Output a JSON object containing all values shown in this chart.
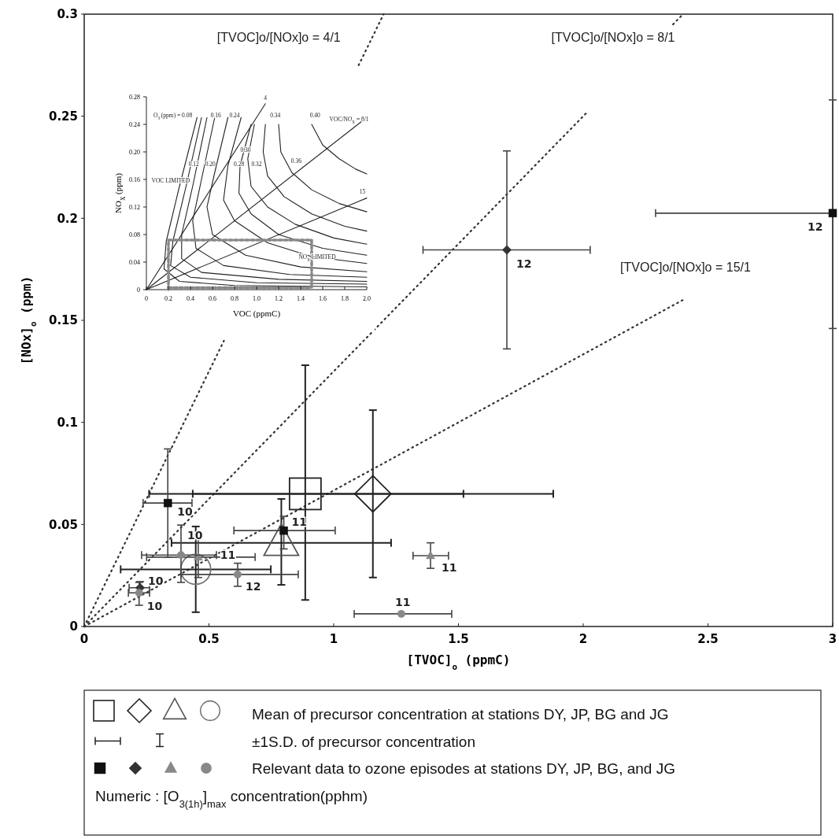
{
  "chart_data": [
    {
      "type": "scatter",
      "xlabel": "[TVOC]$_{o}$ (ppmC)",
      "ylabel": "[NOx]$_{o}$ (ppm)",
      "xlim": [
        0,
        3
      ],
      "ylim": [
        0,
        0.3
      ],
      "xticks": [
        0,
        0.5,
        1,
        1.5,
        2,
        2.5,
        3
      ],
      "yticks": [
        0,
        0.05,
        0.1,
        0.15,
        0.2,
        0.25,
        0.3
      ],
      "annotations": [
        "[TVOC]o/[NOx]o = 4/1",
        "[TVOC]o/[NOx]o = 8/1",
        "[TVOC]o/[NOx]o = 15/1",
        "Mean of precursor concentration at stations DY, JP, BG and JG",
        "±1S.D. of precursor concentration",
        "Relevant data to ozone episodes at stations DY, JP, BG, and JG",
        "Numeric : [O$_{3(1h)}$]$_{max}$ concentration(pphm)",
        {
          "text": "10",
          "x": 0.335,
          "y": 0.0605
        },
        {
          "text": "11",
          "x": 0.8,
          "y": 0.047
        },
        {
          "text": "12",
          "x": 3.0,
          "y": 0.2025
        },
        {
          "text": "12",
          "x": 1.694,
          "y": 0.1845
        },
        {
          "text": "10",
          "x": 0.224,
          "y": 0.019
        },
        {
          "text": "11",
          "x": 1.388,
          "y": 0.0347
        },
        {
          "text": "11",
          "x": 0.457,
          "y": 0.034
        },
        {
          "text": "10",
          "x": 0.388,
          "y": 0.035
        },
        {
          "text": "12",
          "x": 0.615,
          "y": 0.0255
        },
        {
          "text": "11",
          "x": 1.271,
          "y": 0.0062
        },
        {
          "text": "10",
          "x": 0.22,
          "y": 0.0165
        }
      ],
      "series": [
        {
          "type": "line",
          "line_style": "dotted",
          "color": "#333333",
          "x": [
            0,
            0.56,
            0.8,
            1.1,
            1.2
          ],
          "values": [
            0,
            0.14,
            null,
            0.275,
            0.3
          ]
        },
        {
          "type": "line",
          "line_style": "dotted",
          "color": "#333333",
          "x": [
            0,
            2.02,
            2.2,
            2.36,
            2.4
          ],
          "values": [
            0,
            0.2525,
            null,
            0.295,
            0.3
          ]
        },
        {
          "type": "line",
          "line_style": "dotted",
          "color": "#333333",
          "x": [
            0,
            2.4
          ],
          "values": [
            0,
            0.16
          ]
        },
        {
          "marker": "square",
          "color": "#222222",
          "x": [
            0.886
          ],
          "values": [
            0.065
          ],
          "errors": [
            [
              0.013,
              0.128
            ]
          ],
          "xerrors": [
            [
              0.26,
              1.52
            ]
          ]
        },
        {
          "marker": "diamond",
          "color": "#222222",
          "x": [
            1.157
          ],
          "values": [
            0.065
          ],
          "errors": [
            [
              0.024,
              0.106
            ]
          ],
          "xerrors": [
            [
              0.435,
              1.88
            ]
          ]
        },
        {
          "marker": "triangle",
          "color": "#555555",
          "x": [
            0.79
          ],
          "values": [
            0.041
          ],
          "errors": [
            [
              0.0204,
              0.0625
            ]
          ],
          "xerrors": [
            [
              0.35,
              1.23
            ]
          ]
        },
        {
          "marker": "circle",
          "color": "#777777",
          "x": [
            0.447
          ],
          "values": [
            0.028
          ],
          "errors": [
            [
              0.007,
              0.049
            ]
          ],
          "xerrors": [
            [
              0.146,
              0.748
            ]
          ]
        },
        {
          "marker": "square",
          "color": "#111111",
          "x": [
            0.335,
            0.8,
            3.0
          ],
          "values": [
            0.0605,
            0.047,
            0.2025
          ],
          "errors": [
            [
              0.034,
              0.087
            ],
            [
              0.038,
              0.054
            ],
            [
              0.146,
              0.258
            ]
          ],
          "xerrors": [
            [
              0.236,
              0.432
            ],
            [
              0.6,
              1.006
            ],
            [
              2.29,
              3.0
            ]
          ]
        },
        {
          "marker": "diamond",
          "color": "#333333",
          "x": [
            1.694,
            0.224
          ],
          "values": [
            0.1845,
            0.019
          ],
          "errors": [
            [
              0.136,
              0.233
            ],
            [
              0.016,
              0.022
            ]
          ],
          "xerrors": [
            [
              1.358,
              2.028
            ],
            [
              0.18,
              0.262
            ]
          ]
        },
        {
          "marker": "triangle",
          "color": "#888888",
          "x": [
            1.388,
            0.457
          ],
          "values": [
            0.0347,
            0.034
          ],
          "errors": [
            [
              0.0285,
              0.041
            ],
            [
              0.024,
              0.0436
            ]
          ],
          "xerrors": [
            [
              1.318,
              1.46
            ],
            [
              0.25,
              0.685
            ]
          ]
        },
        {
          "marker": "circle",
          "color": "#888888",
          "x": [
            0.388,
            0.615,
            1.271,
            0.22
          ],
          "values": [
            0.035,
            0.0255,
            0.0062,
            0.0165
          ],
          "errors": [
            [
              0.0216,
              0.0497
            ],
            [
              0.0197,
              0.031
            ],
            null,
            [
              0.0104,
              0.0216
            ]
          ],
          "xerrors": [
            [
              0.23,
              0.53
            ],
            [
              0.388,
              0.858
            ],
            [
              1.082,
              1.473
            ],
            [
              0.177,
              0.262
            ]
          ]
        }
      ]
    },
    {
      "type": "line",
      "xlabel": "VOC (ppmC)",
      "ylabel": "NO$_{X}$ (ppm)",
      "xlim": [
        0,
        2
      ],
      "ylim": [
        0,
        0.28
      ],
      "xticks": [
        0,
        0.2,
        0.4,
        0.6,
        0.8,
        {
          "value": 1,
          "label": "1.0"
        },
        1.2,
        1.4,
        1.6,
        1.8,
        {
          "value": 2,
          "label": "2.0"
        }
      ],
      "yticks": [
        0,
        0.04,
        0.08,
        0.12,
        0.16,
        {
          "value": 0.2,
          "label": "0.20"
        },
        0.24,
        0.28
      ],
      "annotations": [
        "O$_{3}$ (ppm) = 0.08",
        "0.16",
        "0.24",
        "0.34",
        "0.40",
        "0.12",
        "0.20",
        "0.28",
        "0.32",
        "0.30",
        "0.36",
        "VOC LIMITED",
        "NO$_{X}$ LIMITED",
        "VOC/NO$_{X}$ = 8/1",
        "4",
        "15"
      ],
      "series": [
        {
          "color": "#222222",
          "x": [
            0,
            1.08
          ],
          "values": [
            0,
            0.27
          ]
        },
        {
          "color": "#222222",
          "x": [
            0,
            2.0
          ],
          "values": [
            0,
            0.25
          ]
        },
        {
          "color": "#222222",
          "x": [
            0,
            2.0
          ],
          "values": [
            0,
            0.133
          ]
        },
        {
          "color": "#222222",
          "x": [
            0.46,
            0.3,
            0.18,
            0.16,
            0.3,
            0.8,
            2.0
          ],
          "values": [
            0.25,
            0.15,
            0.07,
            0.03,
            0.012,
            0.006,
            0.004
          ]
        },
        {
          "color": "#222222",
          "x": [
            0.5,
            0.36,
            0.24,
            0.22,
            0.4,
            1.0,
            2.0
          ],
          "values": [
            0.25,
            0.15,
            0.07,
            0.035,
            0.018,
            0.01,
            0.008
          ]
        },
        {
          "color": "#222222",
          "x": [
            0.55,
            0.42,
            0.32,
            0.32,
            0.5,
            1.2,
            2.0
          ],
          "values": [
            0.25,
            0.15,
            0.08,
            0.045,
            0.025,
            0.015,
            0.012
          ]
        },
        {
          "color": "#222222",
          "x": [
            0.62,
            0.5,
            0.42,
            0.45,
            0.7,
            1.3,
            2.0
          ],
          "values": [
            0.25,
            0.16,
            0.1,
            0.06,
            0.035,
            0.022,
            0.018
          ]
        },
        {
          "color": "#222222",
          "x": [
            0.74,
            0.62,
            0.55,
            0.6,
            0.9,
            1.4,
            2.0
          ],
          "values": [
            0.25,
            0.17,
            0.12,
            0.08,
            0.05,
            0.033,
            0.026
          ]
        },
        {
          "color": "#222222",
          "x": [
            0.86,
            0.74,
            0.7,
            0.8,
            1.1,
            1.5,
            2.0
          ],
          "values": [
            0.25,
            0.18,
            0.13,
            0.1,
            0.068,
            0.048,
            0.038
          ]
        },
        {
          "color": "#222222",
          "x": [
            0.95,
            0.85,
            0.84,
            0.95,
            1.2,
            1.6,
            2.0
          ],
          "values": [
            0.24,
            0.18,
            0.14,
            0.11,
            0.08,
            0.06,
            0.05
          ]
        },
        {
          "color": "#222222",
          "x": [
            0.98,
            0.92,
            0.95,
            1.1,
            1.35,
            1.7,
            2.0
          ],
          "values": [
            0.24,
            0.19,
            0.15,
            0.12,
            0.095,
            0.075,
            0.066
          ]
        },
        {
          "color": "#222222",
          "x": [
            1.08,
            1.06,
            1.1,
            1.25,
            1.5,
            1.8,
            2.0
          ],
          "values": [
            0.24,
            0.2,
            0.165,
            0.135,
            0.11,
            0.092,
            0.085
          ]
        },
        {
          "color": "#222222",
          "x": [
            1.2,
            1.22,
            1.32,
            1.5,
            1.75,
            2.0
          ],
          "values": [
            0.24,
            0.2,
            0.17,
            0.145,
            0.125,
            0.113
          ]
        },
        {
          "color": "#222222",
          "x": [
            1.5,
            1.6,
            1.75,
            1.9,
            2.0
          ],
          "values": [
            0.24,
            0.21,
            0.19,
            0.175,
            0.168
          ]
        },
        {
          "color": "#888888",
          "line_style": "dashed",
          "x": [
            0.2,
            0.2,
            1.5,
            1.5
          ],
          "values": [
            0,
            0.072,
            0.072,
            0
          ]
        },
        {
          "color": "#888888",
          "line_style": "dashed",
          "x": [
            0.2,
            1.5
          ],
          "values": [
            0.003,
            0.003
          ]
        }
      ]
    }
  ]
}
